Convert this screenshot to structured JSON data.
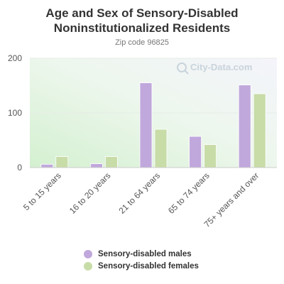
{
  "chart_data": {
    "type": "bar",
    "title": "Age and Sex of Sensory-Disabled Noninstitutionalized Residents",
    "subtitle": "Zip code 96825",
    "watermark": "City-Data.com",
    "categories": [
      "5 to 15 years",
      "16 to 20 years",
      "21 to 64 years",
      "65 to 74 years",
      "75+ years and over"
    ],
    "series": [
      {
        "name": "Sensory-disabled males",
        "color": "#c0a8dc",
        "values": [
          6,
          7,
          155,
          57,
          151
        ]
      },
      {
        "name": "Sensory-disabled females",
        "color": "#c8dca8",
        "values": [
          20,
          20,
          70,
          42,
          135
        ]
      }
    ],
    "ylim": [
      0,
      200
    ],
    "yticks": [
      0,
      100,
      200
    ],
    "xlabel": "",
    "ylabel": "",
    "grid": true,
    "legend_position": "bottom"
  }
}
